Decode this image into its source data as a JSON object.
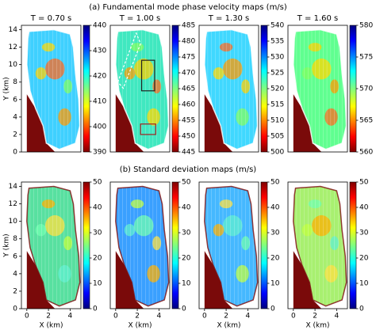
{
  "headings": [
    "(a) Fundamental mode phase velocity maps (m/s)",
    "(b) Standard deviation maps (m/s)"
  ],
  "chart_data": [
    {
      "type": "heatmap",
      "title": "T = 0.70 s",
      "ylabel": "Y (km)",
      "xlim": [
        -0.5,
        5
      ],
      "ylim": [
        0,
        14.5
      ],
      "yticks": [
        0,
        2,
        4,
        6,
        8,
        10,
        12,
        14
      ],
      "colormap": "jet_r",
      "clim": [
        390,
        440
      ],
      "cticks": [
        390,
        400,
        410,
        420,
        430,
        440
      ]
    },
    {
      "type": "heatmap",
      "title": "T = 1.00 s",
      "xlim": [
        -0.5,
        5
      ],
      "ylim": [
        0,
        14.5
      ],
      "colormap": "jet_r",
      "clim": [
        445,
        485
      ],
      "cticks": [
        445,
        450,
        455,
        460,
        465,
        470,
        475,
        480,
        485
      ]
    },
    {
      "type": "heatmap",
      "title": "T = 1.30 s",
      "xlim": [
        -0.5,
        5
      ],
      "ylim": [
        0,
        14.5
      ],
      "colormap": "jet_r",
      "clim": [
        500,
        540
      ],
      "cticks": [
        500,
        505,
        510,
        515,
        520,
        525,
        530,
        535,
        540
      ]
    },
    {
      "type": "heatmap",
      "title": "T = 1.60 s",
      "xlim": [
        -0.5,
        5
      ],
      "ylim": [
        0,
        14.5
      ],
      "colormap": "jet_r",
      "clim": [
        560,
        580
      ],
      "cticks": [
        560,
        565,
        570,
        575,
        580
      ]
    },
    {
      "type": "heatmap",
      "xlabel": "X (km)",
      "ylabel": "Y (km)",
      "xlim": [
        -0.5,
        5
      ],
      "ylim": [
        0,
        14.5
      ],
      "xticks": [
        0,
        2,
        4
      ],
      "yticks": [
        0,
        2,
        4,
        6,
        8,
        10,
        12,
        14
      ],
      "colormap": "jet",
      "clim": [
        0,
        50
      ],
      "cticks": [
        0,
        10,
        20,
        30,
        40,
        50
      ]
    },
    {
      "type": "heatmap",
      "xlabel": "X (km)",
      "xlim": [
        -0.5,
        5
      ],
      "ylim": [
        0,
        14.5
      ],
      "xticks": [
        0,
        2,
        4
      ],
      "colormap": "jet",
      "clim": [
        0,
        50
      ],
      "cticks": [
        0,
        10,
        20,
        30,
        40,
        50
      ]
    },
    {
      "type": "heatmap",
      "xlabel": "X (km)",
      "xlim": [
        -0.5,
        5
      ],
      "ylim": [
        0,
        14.5
      ],
      "xticks": [
        0,
        2,
        4
      ],
      "colormap": "jet",
      "clim": [
        0,
        50
      ],
      "cticks": [
        0,
        10,
        20,
        30,
        40,
        50
      ]
    },
    {
      "type": "heatmap",
      "xlabel": "X (km)",
      "xlim": [
        -0.5,
        5
      ],
      "ylim": [
        0,
        14.5
      ],
      "xticks": [
        0,
        2,
        4
      ],
      "colormap": "jet",
      "clim": [
        0,
        50
      ],
      "cticks": [
        0,
        10,
        20,
        30,
        40,
        50
      ]
    }
  ]
}
